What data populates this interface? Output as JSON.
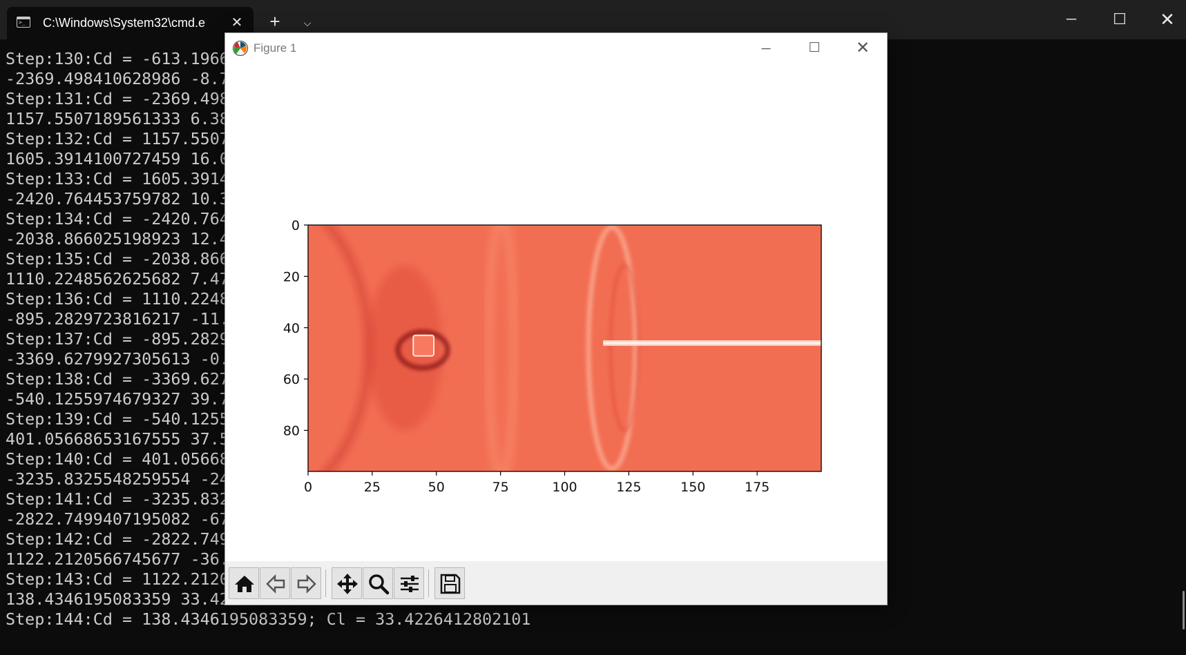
{
  "terminal": {
    "tab_title": "C:\\Windows\\System32\\cmd.e",
    "tab_icon": "command-prompt-icon",
    "lines": [
      "Step:130:Cd = -613.1966",
      "-2369.498410628986 -8.7",
      "Step:131:Cd = -2369.498",
      "1157.5507189561333 6.38",
      "Step:132:Cd = 1157.5507",
      "1605.3914100727459 16.0",
      "Step:133:Cd = 1605.3914",
      "-2420.764453759782 10.3",
      "Step:134:Cd = -2420.764",
      "-2038.866025198923 12.4",
      "Step:135:Cd = -2038.866",
      "1110.2248562625682 7.47",
      "Step:136:Cd = 1110.2248",
      "-895.2829723816217 -11.",
      "Step:137:Cd = -895.2829",
      "-3369.6279927305613 -0.",
      "Step:138:Cd = -3369.627",
      "-540.1255974679327 39.7",
      "Step:139:Cd = -540.1255",
      "401.05668653167555 37.5",
      "Step:140:Cd = 401.05668",
      "-3235.8325548259554 -24",
      "Step:141:Cd = -3235.832",
      "-2822.7499407195082 -67",
      "Step:142:Cd = -2822.749",
      "1122.2120566745677 -36.",
      "Step:143:Cd = 1122.2120",
      "138.4346195083359 33.42",
      "Step:144:Cd = 138.4346195083359; Cl = 33.4226412802101"
    ]
  },
  "figure": {
    "title": "Figure 1",
    "app_icon": "matplotlib-icon",
    "toolbar": [
      {
        "name": "home-button",
        "icon": "home-icon"
      },
      {
        "name": "back-button",
        "icon": "arrow-left-icon"
      },
      {
        "name": "forward-button",
        "icon": "arrow-right-icon"
      },
      {
        "name": "pan-button",
        "icon": "move-icon"
      },
      {
        "name": "zoom-button",
        "icon": "magnifier-icon"
      },
      {
        "name": "configure-subplots-button",
        "icon": "sliders-icon"
      },
      {
        "name": "save-button",
        "icon": "floppy-disk-icon"
      }
    ]
  },
  "chart_data": {
    "type": "heatmap",
    "title": "",
    "xlabel": "",
    "ylabel": "",
    "colormap": "Reds",
    "base_color": "#f26e53",
    "xlim": [
      0,
      200
    ],
    "ylim": [
      96,
      0
    ],
    "x_ticks": [
      0,
      25,
      50,
      75,
      100,
      125,
      150,
      175
    ],
    "y_ticks": [
      0,
      20,
      40,
      60,
      80
    ],
    "obstacle": {
      "x_center": 45,
      "y_center": 47,
      "size": 8
    },
    "wake_streak": {
      "x_start": 115,
      "x_end": 200,
      "y": 46
    },
    "wavefronts_x_at_center": [
      20,
      70,
      120
    ]
  }
}
